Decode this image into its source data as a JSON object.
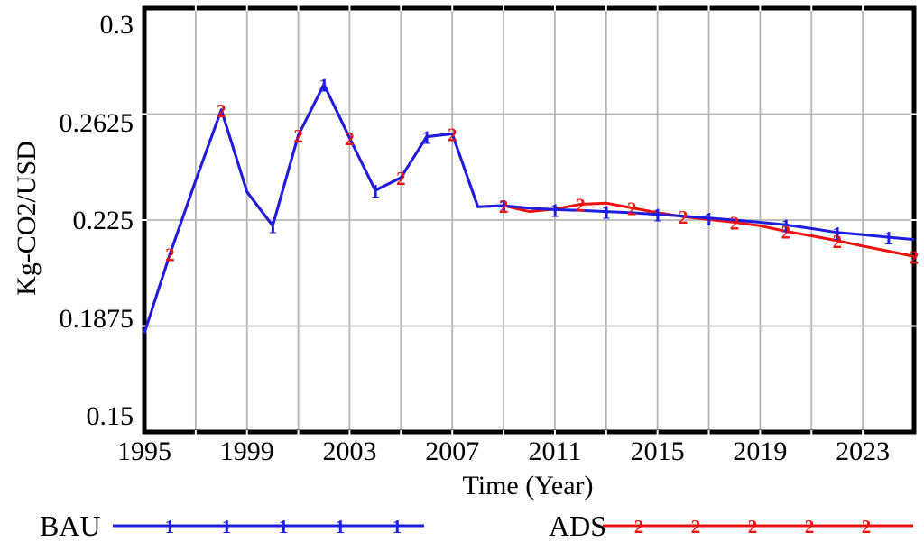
{
  "chart_data": {
    "type": "line",
    "xlabel": "Time (Year)",
    "ylabel": "Kg-CO2/USD",
    "x_range": [
      1995,
      2025
    ],
    "y_range": [
      0.15,
      0.3
    ],
    "x_ticks": [
      1995,
      1999,
      2003,
      2007,
      2011,
      2015,
      2019,
      2023
    ],
    "y_ticks": [
      "0.3",
      "0.2625",
      "0.225",
      "0.1875",
      "0.15"
    ],
    "grid_x_years": [
      1997,
      1999,
      2001,
      2003,
      2005,
      2007,
      2009,
      2011,
      2013,
      2015,
      2017,
      2019,
      2021,
      2023
    ],
    "grid_y_values": [
      0.1875,
      0.225,
      0.2625
    ],
    "grid_on": true,
    "legend_position": "bottom",
    "x": [
      1995,
      1996,
      1997,
      1998,
      1999,
      2000,
      2001,
      2002,
      2003,
      2004,
      2005,
      2006,
      2007,
      2008,
      2009,
      2010,
      2011,
      2012,
      2013,
      2014,
      2015,
      2016,
      2017,
      2018,
      2019,
      2020,
      2021,
      2022,
      2023,
      2024,
      2025
    ],
    "series": [
      {
        "name": "BAU",
        "marker": "1",
        "color": "#1e1ee0",
        "values": [
          0.185,
          0.213,
          0.239,
          0.264,
          0.235,
          0.223,
          0.255,
          0.273,
          0.254,
          0.2355,
          0.24,
          0.2545,
          0.2555,
          0.2297,
          0.2301,
          0.2292,
          0.2287,
          0.2284,
          0.228,
          0.2276,
          0.227,
          0.2264,
          0.2257,
          0.225,
          0.2242,
          0.2233,
          0.222,
          0.2206,
          0.2198,
          0.2189,
          0.2181
        ],
        "marker_years": [
          2000,
          2002,
          2004,
          2006,
          2009,
          2011,
          2013,
          2015,
          2017,
          2020,
          2022,
          2024
        ]
      },
      {
        "name": "ADS",
        "marker": "2",
        "color": "#ee1010",
        "values": [
          0.185,
          0.213,
          0.239,
          0.264,
          0.235,
          0.223,
          0.255,
          0.273,
          0.254,
          0.2355,
          0.24,
          0.2545,
          0.2555,
          0.2297,
          0.2301,
          0.228,
          0.2289,
          0.2306,
          0.231,
          0.2293,
          0.2276,
          0.2262,
          0.2252,
          0.2242,
          0.223,
          0.221,
          0.2194,
          0.2177,
          0.2158,
          0.214,
          0.2121
        ],
        "marker_years": [
          1996,
          1998,
          2001,
          2003,
          2005,
          2007,
          2009,
          2012,
          2014,
          2016,
          2018,
          2020,
          2022,
          2025
        ]
      }
    ],
    "axis_color": "#000000",
    "grid_color": "#b5b5b5"
  }
}
